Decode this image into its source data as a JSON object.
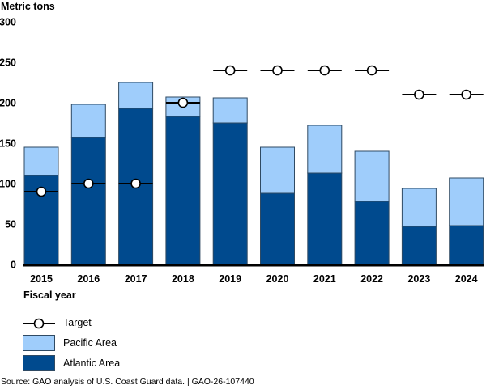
{
  "chart_data": {
    "type": "bar",
    "stacked": true,
    "title": "",
    "ylabel": "Metric tons",
    "xlabel": "Fiscal year",
    "ylim": [
      0,
      300
    ],
    "yticks": [
      0,
      50,
      100,
      150,
      200,
      250,
      300
    ],
    "yticklabels": [
      "0",
      "50",
      "100",
      "150",
      "200",
      "250",
      "300"
    ],
    "grid": false,
    "categories": [
      "2015",
      "2016",
      "2017",
      "2018",
      "2019",
      "2020",
      "2021",
      "2022",
      "2023",
      "2024"
    ],
    "series": [
      {
        "name": "Atlantic Area",
        "color": "#004a8e",
        "values": [
          110,
          157,
          193,
          183,
          175,
          88,
          113,
          78,
          47,
          48
        ]
      },
      {
        "name": "Pacific Area",
        "color": "#9fcdfb",
        "values": [
          35,
          41,
          32,
          24,
          31,
          57,
          59,
          62,
          47,
          59
        ]
      }
    ],
    "target": {
      "name": "Target",
      "values": [
        90,
        100,
        100,
        200,
        240,
        240,
        240,
        240,
        210,
        210
      ]
    },
    "legend": {
      "placement": "bottom-left",
      "entries": [
        "Target",
        "Pacific Area",
        "Atlantic Area"
      ]
    }
  },
  "legend": {
    "target": "Target",
    "pacific": "Pacific Area",
    "atlantic": "Atlantic Area"
  },
  "axis": {
    "ylabel": "Metric tons",
    "xlabel": "Fiscal year"
  },
  "source": "Source: GAO analysis of U.S. Coast Guard data.  |  GAO-26-107440"
}
